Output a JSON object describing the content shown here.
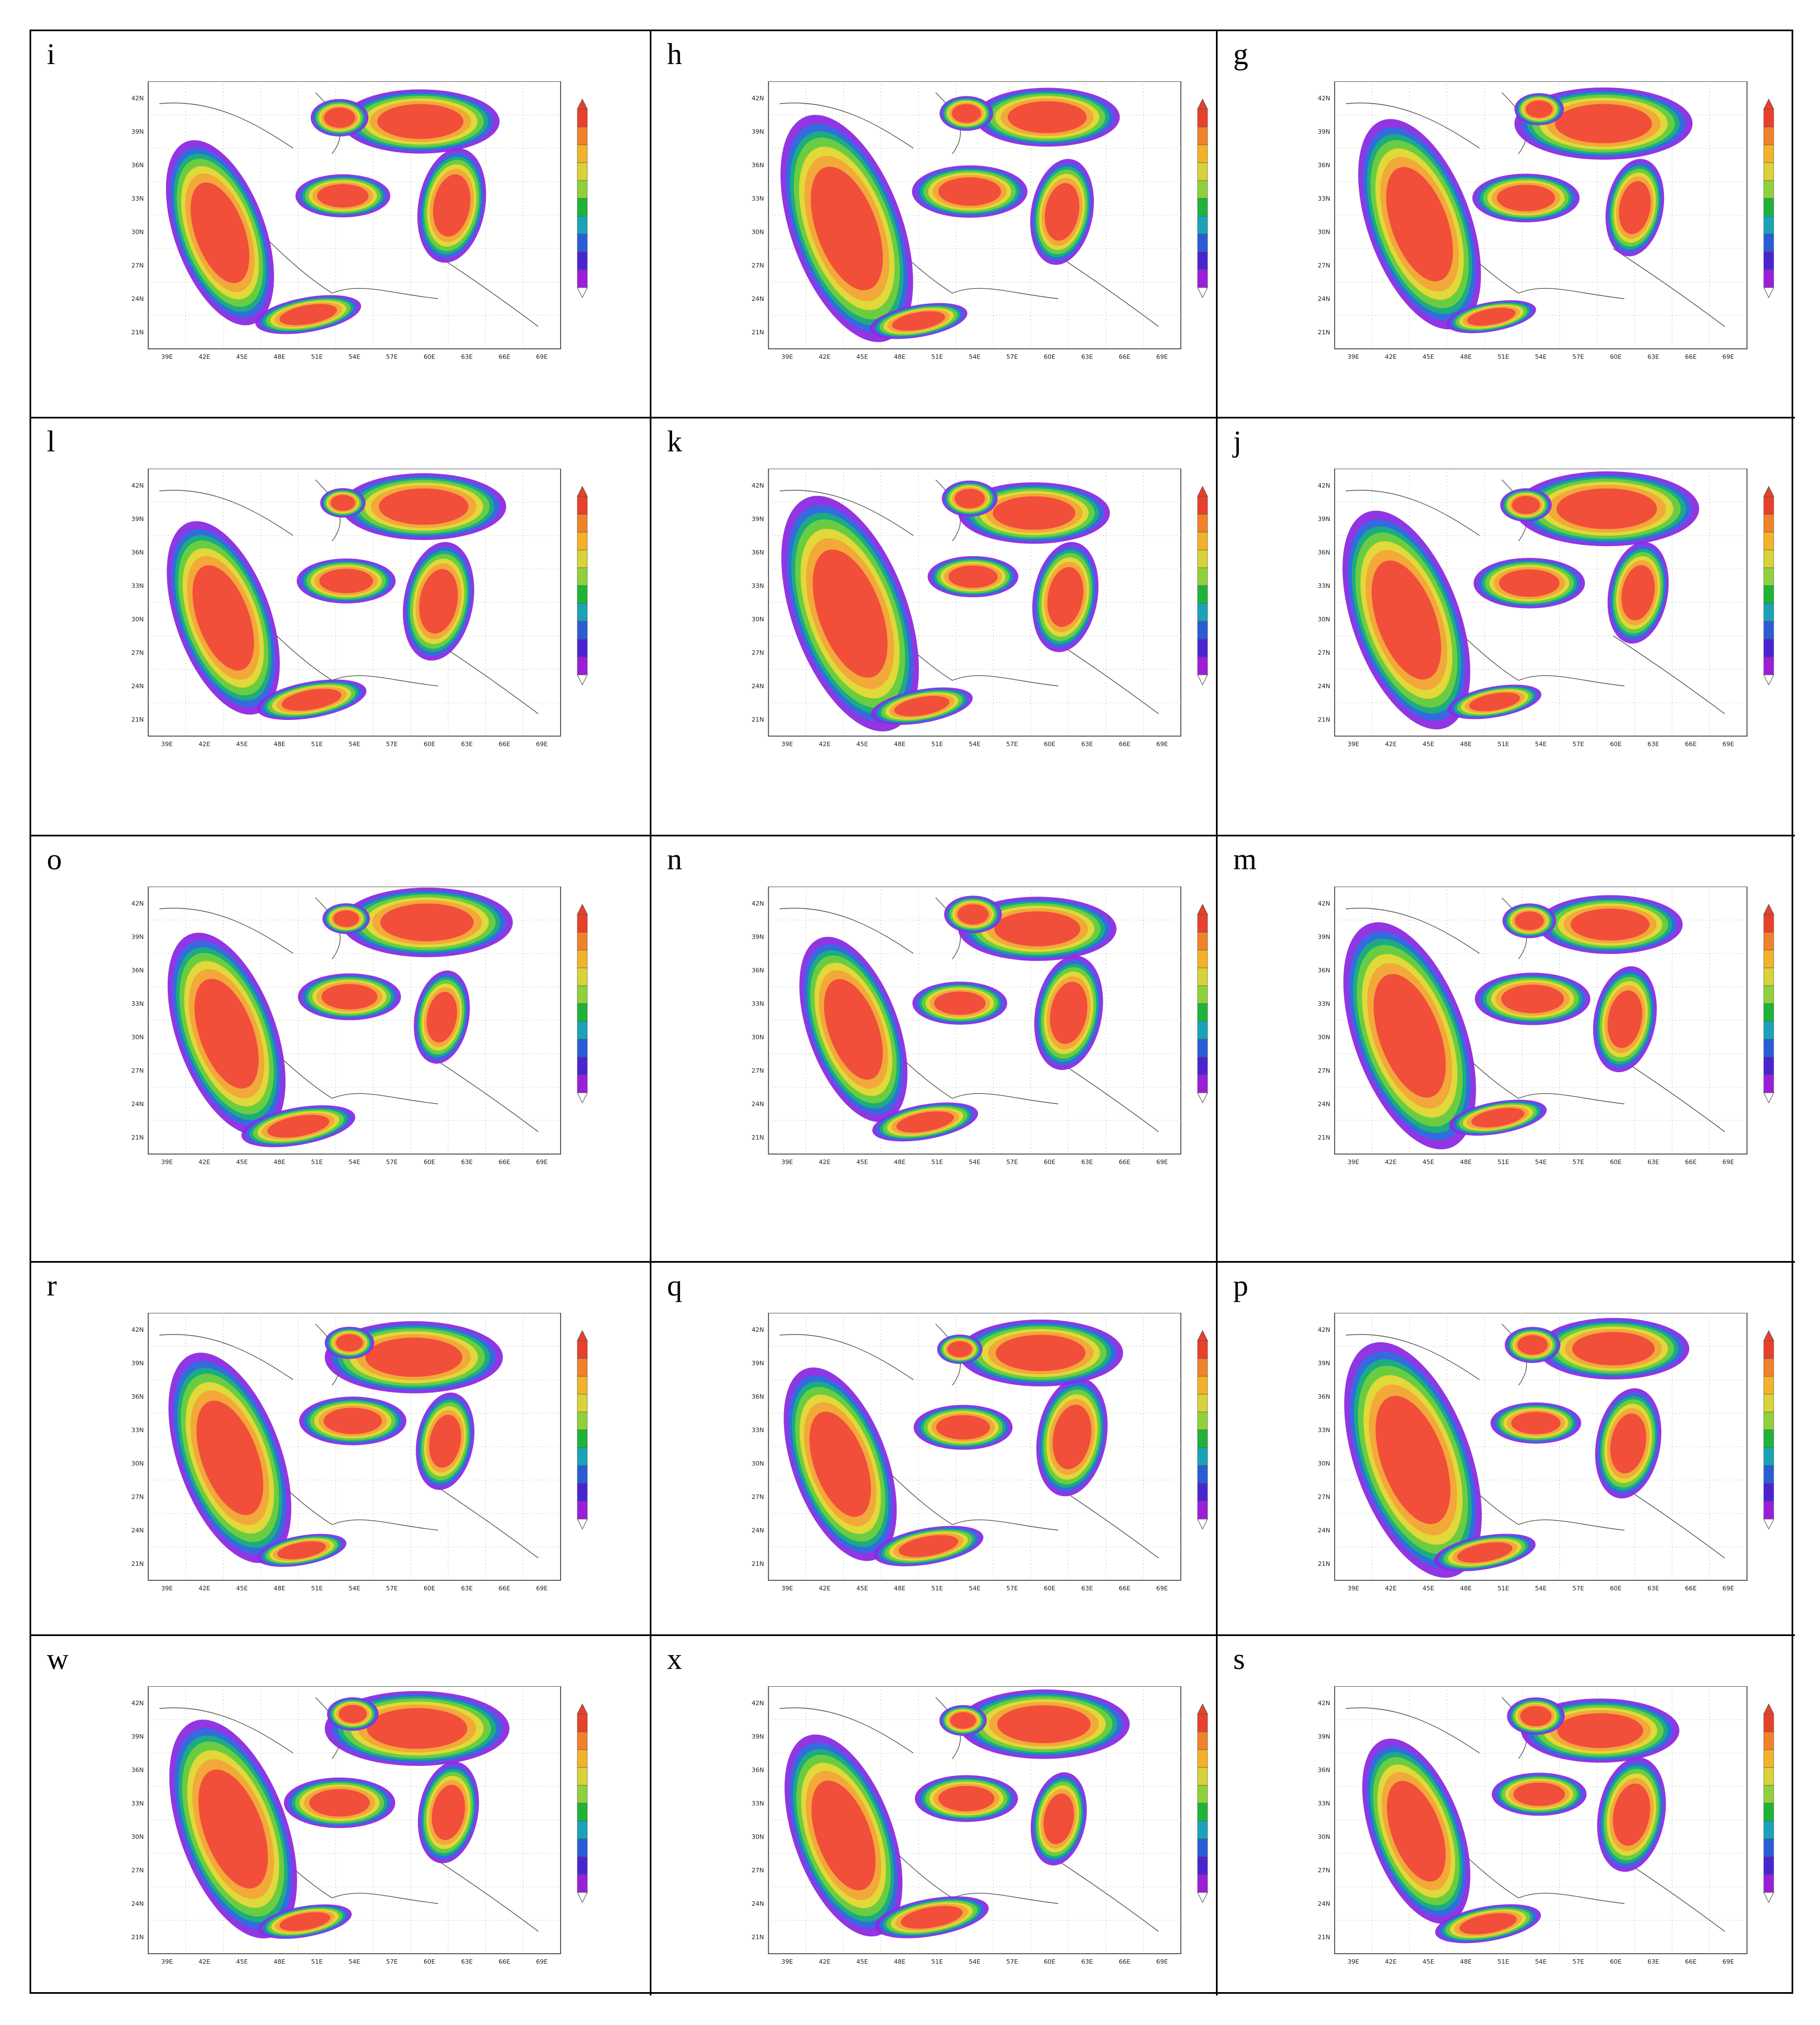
{
  "panels": [
    {
      "letter": "i",
      "variant": 0
    },
    {
      "letter": "h",
      "variant": 1
    },
    {
      "letter": "g",
      "variant": 2
    },
    {
      "letter": "l",
      "variant": 3
    },
    {
      "letter": "k",
      "variant": 4
    },
    {
      "letter": "j",
      "variant": 5
    },
    {
      "letter": "o",
      "variant": 6
    },
    {
      "letter": "n",
      "variant": 7
    },
    {
      "letter": "m",
      "variant": 8
    },
    {
      "letter": "r",
      "variant": 9
    },
    {
      "letter": "q",
      "variant": 10
    },
    {
      "letter": "p",
      "variant": 11
    },
    {
      "letter": "w",
      "variant": 12
    },
    {
      "letter": "x",
      "variant": 13
    },
    {
      "letter": "s",
      "variant": 14
    }
  ],
  "map": {
    "lat_labels": [
      "42N",
      "39N",
      "36N",
      "33N",
      "30N",
      "27N",
      "24N",
      "21N"
    ],
    "lon_labels": [
      "39E",
      "42E",
      "45E",
      "48E",
      "51E",
      "54E",
      "57E",
      "60E",
      "63E",
      "66E",
      "69E"
    ]
  },
  "colorbar": {
    "levels": [
      "2000",
      "1500",
      "1000",
      "750",
      "500",
      "250",
      "200",
      "150",
      "100",
      "50"
    ],
    "colors": [
      "#e8402b",
      "#f0822a",
      "#f3b229",
      "#d9d23a",
      "#8fd13b",
      "#1fb33a",
      "#1aa3b8",
      "#2a5cd6",
      "#4a24d0",
      "#9b1fd8"
    ]
  },
  "legend_colors": {
    "red": "#f04a3a",
    "orange": "#f3a53a",
    "yellow": "#e8d83a",
    "green": "#6fcf3d",
    "teal": "#1ab07a",
    "blue": "#2f6fe0",
    "purple": "#8b2be0"
  }
}
